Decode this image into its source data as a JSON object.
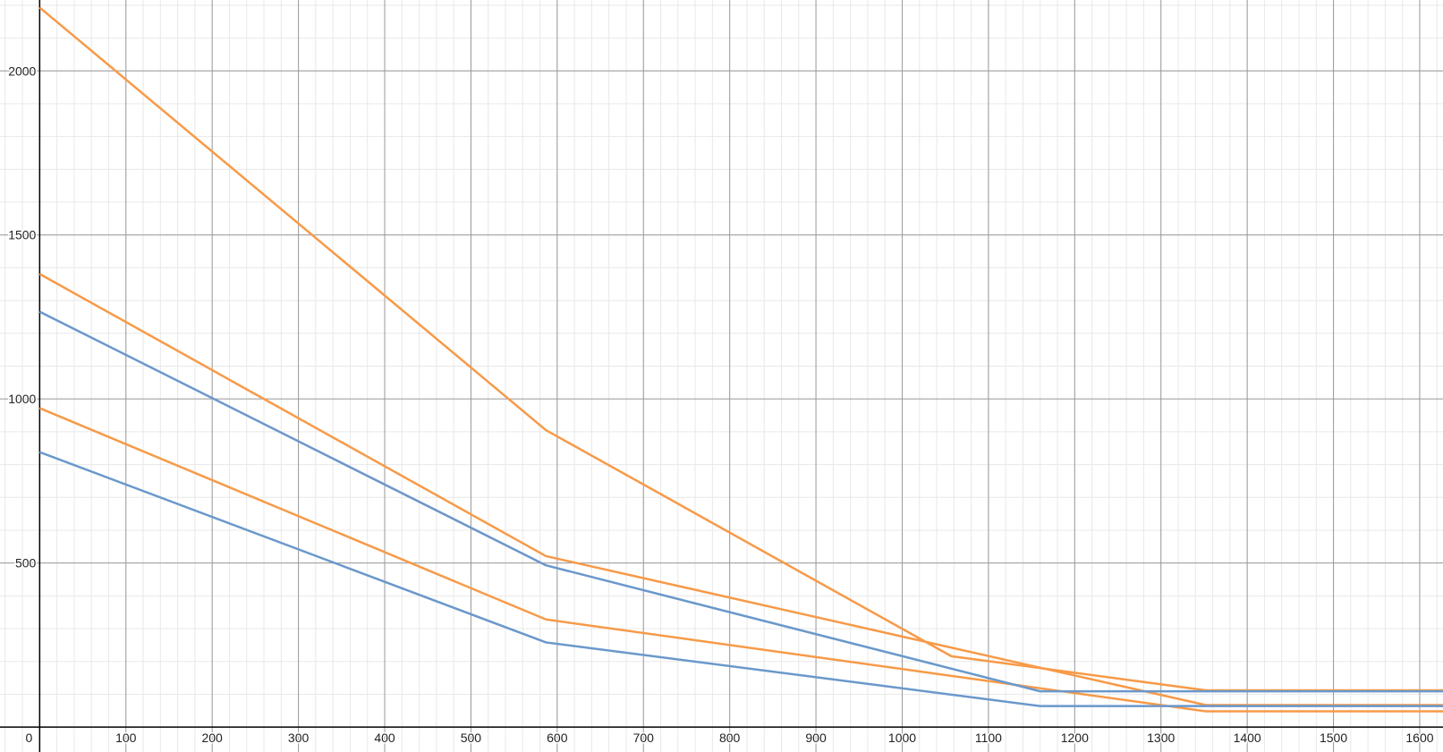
{
  "chart_data": {
    "type": "line",
    "xlim": [
      -46,
      1627
    ],
    "ylim": [
      -76,
      2216
    ],
    "xticks": [
      0,
      100,
      200,
      300,
      400,
      500,
      600,
      700,
      800,
      900,
      1000,
      1100,
      1200,
      1300,
      1400,
      1500,
      1600
    ],
    "yticks": [
      500,
      1000,
      1500,
      2000
    ],
    "grid": true,
    "series": [
      {
        "color": "#f79a48",
        "x": [
          0,
          587,
          1057,
          1352,
          1627
        ],
        "values": [
          2193,
          905,
          216,
          112,
          112
        ]
      },
      {
        "color": "#f79a48",
        "x": [
          0,
          587,
          1352,
          1627
        ],
        "values": [
          1381,
          521,
          67,
          67
        ]
      },
      {
        "color": "#f79a48",
        "x": [
          0,
          587,
          1352,
          1627
        ],
        "values": [
          972,
          328,
          48,
          48
        ]
      },
      {
        "color": "#6a98cb",
        "x": [
          0,
          587,
          1160,
          1627
        ],
        "values": [
          1266,
          493,
          109,
          109
        ]
      },
      {
        "color": "#6a98cb",
        "x": [
          0,
          587,
          1160,
          1627
        ],
        "values": [
          838,
          258,
          64,
          64
        ]
      }
    ]
  }
}
